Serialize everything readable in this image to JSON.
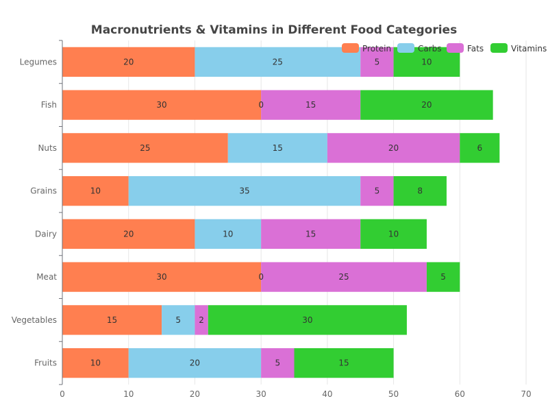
{
  "chart_data": {
    "type": "bar",
    "orientation": "horizontal",
    "stacked": true,
    "title": "Macronutrients & Vitamins in Different Food Categories",
    "categories": [
      "Fruits",
      "Vegetables",
      "Meat",
      "Dairy",
      "Grains",
      "Nuts",
      "Fish",
      "Legumes"
    ],
    "series": [
      {
        "name": "Protein",
        "color": "#ff7f50",
        "values": [
          10,
          15,
          30,
          20,
          10,
          25,
          30,
          20
        ]
      },
      {
        "name": "Carbs",
        "color": "#87ceeb",
        "values": [
          20,
          5,
          0,
          10,
          35,
          15,
          0,
          25
        ]
      },
      {
        "name": "Fats",
        "color": "#da70d6",
        "values": [
          5,
          2,
          25,
          15,
          5,
          20,
          15,
          5
        ]
      },
      {
        "name": "Vitamins",
        "color": "#32cd32",
        "values": [
          15,
          30,
          5,
          10,
          8,
          6,
          20,
          10
        ]
      }
    ],
    "xlim": [
      0,
      70
    ],
    "xticks": [
      0,
      10,
      20,
      30,
      40,
      50,
      60,
      70
    ],
    "xlabel": "",
    "ylabel": "",
    "grid": true,
    "legend_position": "top-right"
  }
}
